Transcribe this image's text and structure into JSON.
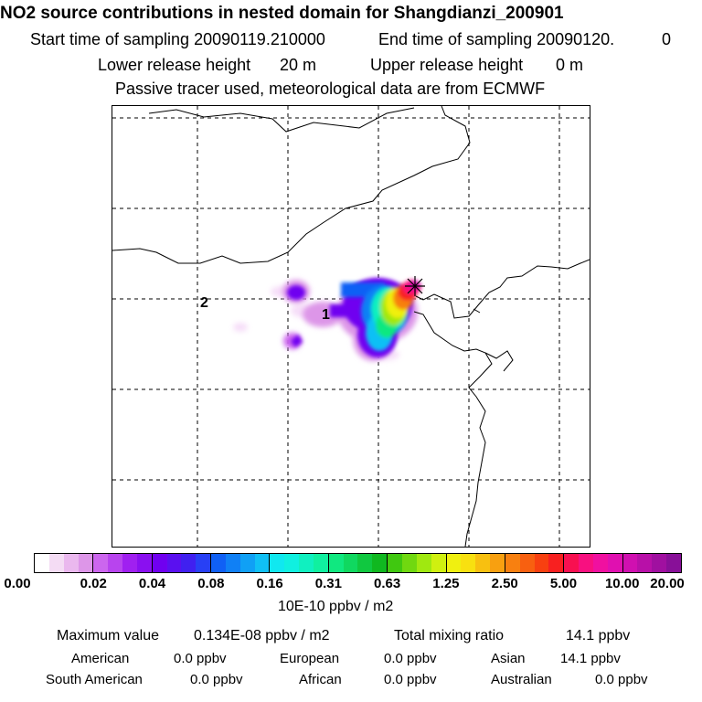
{
  "header": {
    "title": "NO2 source contributions in nested domain for Shangdianzi_200901",
    "start_label": "Start time of sampling 20090119.210000",
    "end_label": "End time of sampling 20090120.",
    "end_value": "0",
    "lower_label": "Lower release height",
    "lower_value": "20 m",
    "upper_label": "Upper release height",
    "upper_value": "0 m",
    "note": "Passive tracer used, meteorological data are from ECMWF"
  },
  "map": {
    "markers": [
      {
        "id": "1",
        "label": "1"
      },
      {
        "id": "2",
        "label": "2"
      }
    ],
    "receptor_symbol": "✳"
  },
  "colorbar": {
    "ticks": [
      "0.00",
      "0.02",
      "0.04",
      "0.08",
      "0.16",
      "0.31",
      "0.63",
      "1.25",
      "2.50",
      "5.00",
      "10.00",
      "20.00"
    ],
    "unit": "10E-10 ppbv / m2",
    "segments": [
      [
        "#ffffff",
        "#f4dcf4",
        "#eab8ee",
        "#dd96e8"
      ],
      [
        "#cc66ee",
        "#b844ee",
        "#a020f0",
        "#8a10f0"
      ],
      [
        "#7000f0",
        "#5a10f0",
        "#4020f0",
        "#2840f5"
      ],
      [
        "#1060f5",
        "#1080f5",
        "#10a0f5",
        "#10c0f5"
      ],
      [
        "#10e8f0",
        "#10f0e0",
        "#10f0c0",
        "#10f0a0"
      ],
      [
        "#10e880",
        "#10d860",
        "#10c840",
        "#10b820"
      ],
      [
        "#40c810",
        "#70d810",
        "#a0e810",
        "#d0f010"
      ],
      [
        "#f0f010",
        "#f8e010",
        "#f8c010",
        "#f8a010"
      ],
      [
        "#f88010",
        "#f86010",
        "#f84010",
        "#f82020"
      ],
      [
        "#f81050",
        "#f81080",
        "#f010a0",
        "#e010b0"
      ],
      [
        "#d010b0",
        "#b810a8",
        "#a010a0",
        "#881098"
      ]
    ]
  },
  "stats": {
    "max_label": "Maximum value",
    "max_value": "0.134E-08 ppbv / m2",
    "total_label": "Total mixing ratio",
    "total_value": "14.1 ppbv",
    "sources": [
      {
        "name": "American",
        "value": "0.0 ppbv"
      },
      {
        "name": "European",
        "value": "0.0 ppbv"
      },
      {
        "name": "Asian",
        "value": "14.1 ppbv"
      },
      {
        "name": "South American",
        "value": "0.0 ppbv"
      },
      {
        "name": "African",
        "value": "0.0 ppbv"
      },
      {
        "name": "Australian",
        "value": "0.0 ppbv"
      }
    ]
  }
}
